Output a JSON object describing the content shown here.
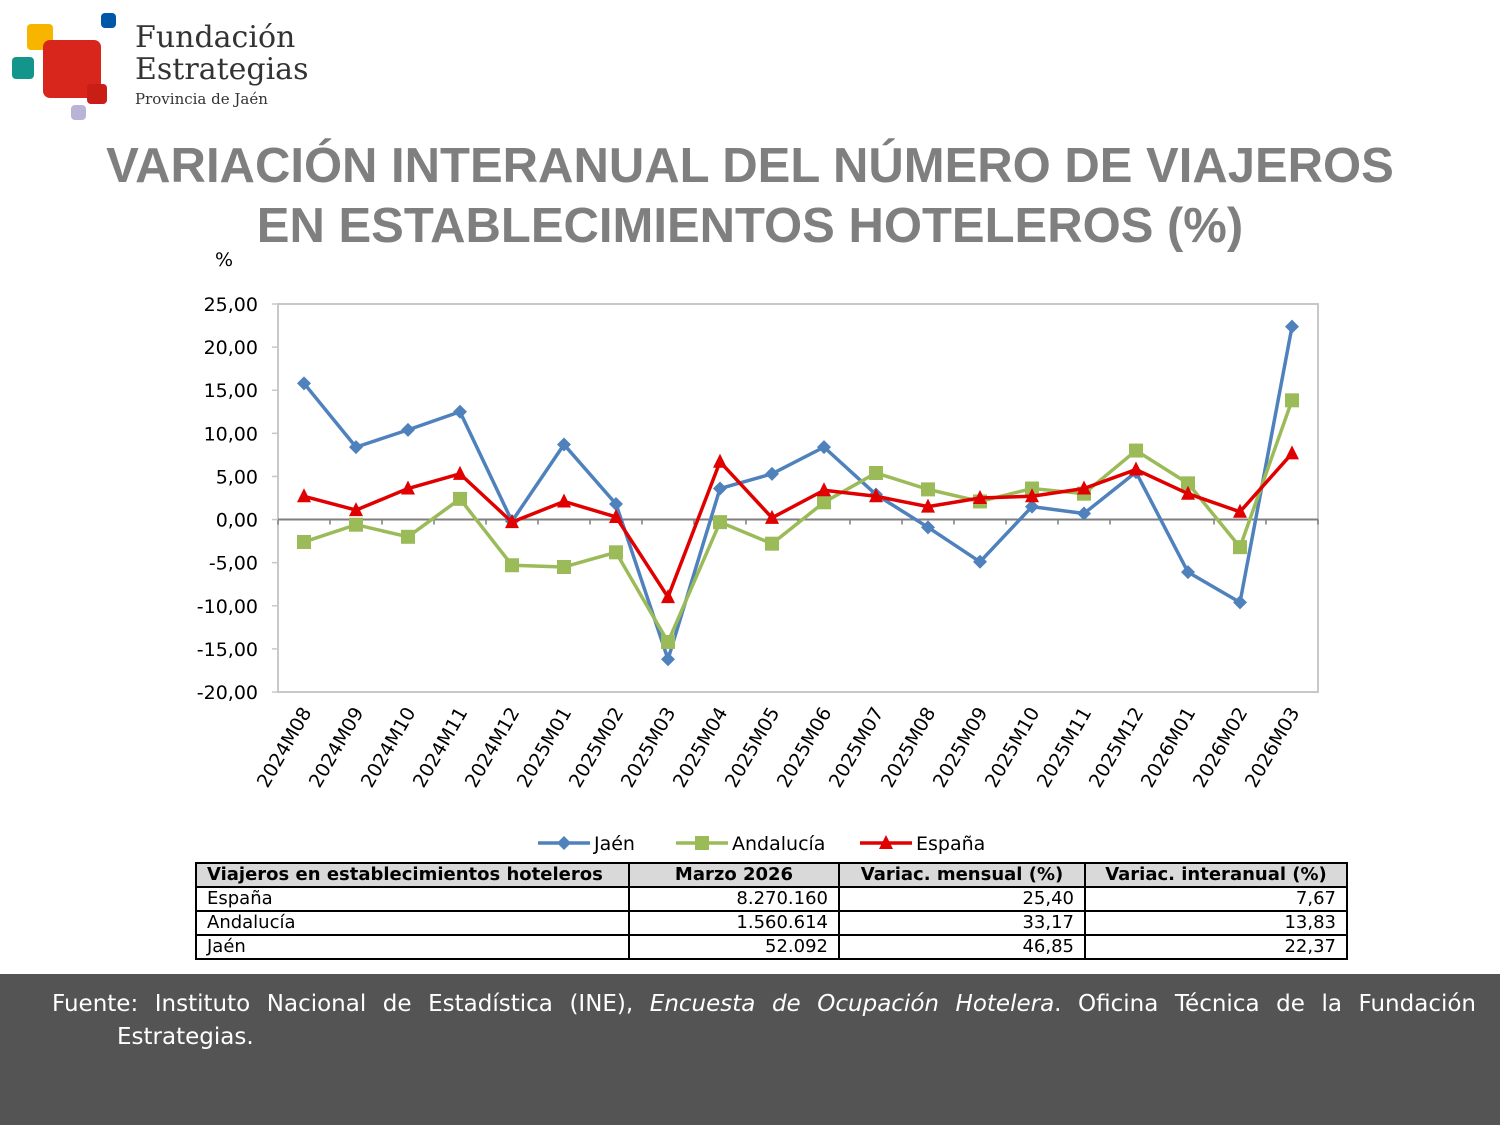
{
  "logo": {
    "name_line1": "Fundación",
    "name_line2": "Estrategias",
    "subtitle": "Provincia de Jaén",
    "colors": {
      "red": "#d9261c",
      "yellow": "#f7b500",
      "blue": "#0057a8",
      "teal": "#14958b",
      "lavender": "#b8b4d6"
    }
  },
  "title": {
    "line1": "VARIACIÓN INTERANUAL DEL NÚMERO DE VIAJEROS",
    "line2": "EN ESTABLECIMIENTOS HOTELEROS (%)"
  },
  "chart_data": {
    "type": "line",
    "ylabel": "%",
    "ylim": [
      -20,
      25
    ],
    "yticks": [
      "25,00",
      "20,00",
      "15,00",
      "10,00",
      "5,00",
      "0,00",
      "-5,00",
      "-10,00",
      "-15,00",
      "-20,00"
    ],
    "grid": false,
    "legend_position": "bottom",
    "categories": [
      "2024M08",
      "2024M09",
      "2024M10",
      "2024M11",
      "2024M12",
      "2025M01",
      "2025M02",
      "2025M03",
      "2025M04",
      "2025M05",
      "2025M06",
      "2025M07",
      "2025M08",
      "2025M09",
      "2025M10",
      "2025M11",
      "2025M12",
      "2026M01",
      "2026M02",
      "2026M03"
    ],
    "series": [
      {
        "name": "Jaén",
        "color": "#4f81bd",
        "marker": "diamond",
        "values": [
          15.8,
          8.4,
          10.4,
          12.5,
          -0.2,
          8.7,
          1.8,
          -16.2,
          3.6,
          5.3,
          8.4,
          2.9,
          -0.9,
          -4.9,
          1.5,
          0.7,
          5.5,
          -6.1,
          -9.6,
          22.37
        ]
      },
      {
        "name": "Andalucía",
        "color": "#9bbb59",
        "marker": "square",
        "values": [
          -2.6,
          -0.6,
          -2.0,
          2.4,
          -5.3,
          -5.5,
          -3.8,
          -14.2,
          -0.3,
          -2.8,
          2.0,
          5.4,
          3.5,
          2.1,
          3.6,
          3.0,
          8.0,
          4.2,
          -3.2,
          13.83
        ]
      },
      {
        "name": "España",
        "color": "#e00000",
        "marker": "triangle",
        "values": [
          2.7,
          1.1,
          3.6,
          5.3,
          -0.3,
          2.1,
          0.3,
          -9.0,
          6.7,
          0.2,
          3.4,
          2.7,
          1.5,
          2.5,
          2.7,
          3.6,
          5.8,
          3.0,
          0.9,
          7.67
        ]
      }
    ]
  },
  "table": {
    "headers": [
      "Viajeros en establecimientos hoteleros",
      "Marzo 2026",
      "Variac. mensual (%)",
      "Variac. interanual (%)"
    ],
    "rows": [
      [
        "España",
        "8.270.160",
        "25,40",
        "7,67"
      ],
      [
        "Andalucía",
        "1.560.614",
        "33,17",
        "13,83"
      ],
      [
        "Jaén",
        "52.092",
        "46,85",
        "22,37"
      ]
    ]
  },
  "footer": {
    "prefix": "Fuente: Instituto Nacional de Estadística (INE),",
    "italic": "Encuesta de Ocupación Hotelera",
    "suffix": ". Oficina Técnica de la Fundación",
    "line2": "Estrategias."
  }
}
